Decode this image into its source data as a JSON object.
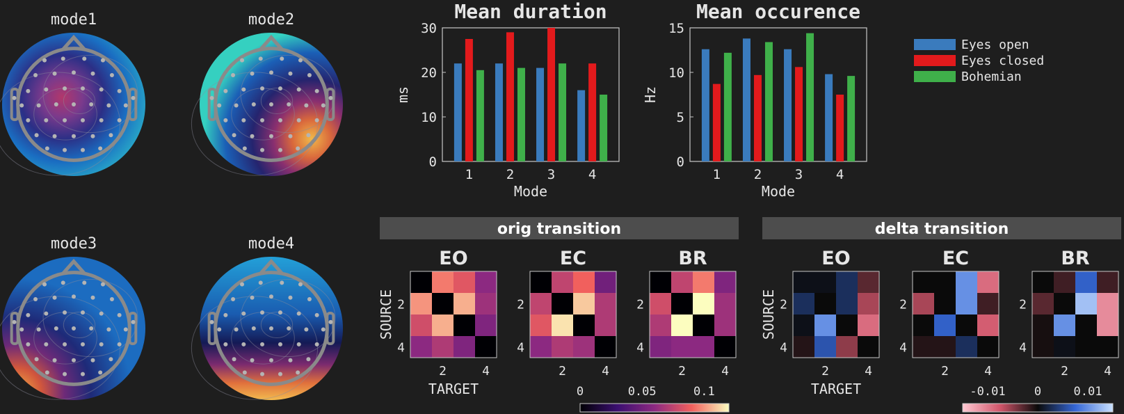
{
  "colors": {
    "background": "#1e1e1e",
    "eyes_open": "#3a7bbd",
    "eyes_closed": "#e31a1c",
    "bohemian": "#3fb04a",
    "banner": "#4d4d4d",
    "axis": "#c8c8c8",
    "text": "#e6e6e6"
  },
  "topomaps": [
    {
      "title": "mode1",
      "pattern": "central-hot"
    },
    {
      "title": "mode2",
      "pattern": "right-posterior-hot"
    },
    {
      "title": "mode3",
      "pattern": "left-temporal-hot"
    },
    {
      "title": "mode4",
      "pattern": "occipital-hot"
    }
  ],
  "chart_data": [
    {
      "type": "bar",
      "title": "Mean duration",
      "xlabel": "Mode",
      "ylabel": "ms",
      "categories": [
        "1",
        "2",
        "3",
        "4"
      ],
      "ylim": [
        0,
        30
      ],
      "yticks": [
        "0",
        "10",
        "20",
        "30"
      ],
      "series": [
        {
          "name": "Eyes open",
          "values": [
            22,
            22,
            21,
            16
          ]
        },
        {
          "name": "Eyes closed",
          "values": [
            27.5,
            29,
            30.5,
            22
          ]
        },
        {
          "name": "Bohemian",
          "values": [
            20.5,
            21,
            22,
            15
          ]
        }
      ]
    },
    {
      "type": "bar",
      "title": "Mean occurence",
      "xlabel": "Mode",
      "ylabel": "Hz",
      "categories": [
        "1",
        "2",
        "3",
        "4"
      ],
      "ylim": [
        0,
        15
      ],
      "yticks": [
        "0",
        "5",
        "10",
        "15"
      ],
      "series": [
        {
          "name": "Eyes open",
          "values": [
            12.6,
            13.8,
            12.6,
            9.8
          ]
        },
        {
          "name": "Eyes closed",
          "values": [
            8.7,
            9.7,
            10.6,
            7.5
          ]
        },
        {
          "name": "Bohemian",
          "values": [
            12.2,
            13.4,
            14.4,
            9.6
          ]
        }
      ]
    },
    {
      "type": "heatmap",
      "banner": "orig transition",
      "colormap": "magma",
      "clim": [
        0,
        0.12
      ],
      "colorbar_ticks": [
        "0",
        "0.05",
        "0.1"
      ],
      "colorbar_tick_values": [
        0,
        0.05,
        0.1
      ],
      "ylabel": "SOURCE",
      "xlabel": "TARGET",
      "row_ticks": [
        "2",
        "4"
      ],
      "col_ticks": [
        "2",
        "4"
      ],
      "panels": [
        {
          "title": "EO",
          "matrix": [
            [
              0,
              0.095,
              0.085,
              0.06
            ],
            [
              0.1,
              0,
              0.105,
              0.065
            ],
            [
              0.08,
              0.105,
              0,
              0.055
            ],
            [
              0.06,
              0.07,
              0.055,
              0
            ]
          ]
        },
        {
          "title": "EC",
          "matrix": [
            [
              0,
              0.075,
              0.09,
              0.05
            ],
            [
              0.075,
              0,
              0.11,
              0.07
            ],
            [
              0.085,
              0.115,
              0,
              0.07
            ],
            [
              0.06,
              0.07,
              0.065,
              0
            ]
          ]
        },
        {
          "title": "BR",
          "matrix": [
            [
              0,
              0.075,
              0.095,
              0.055
            ],
            [
              0.08,
              0,
              0.12,
              0.065
            ],
            [
              0.07,
              0.12,
              0,
              0.065
            ],
            [
              0.055,
              0.06,
              0.06,
              0
            ]
          ]
        }
      ]
    },
    {
      "type": "heatmap",
      "banner": "delta transition",
      "colormap": "diverging",
      "clim": [
        -0.015,
        0.015
      ],
      "colorbar_ticks": [
        "-0.01",
        "0",
        "0.01"
      ],
      "colorbar_tick_values": [
        -0.01,
        0,
        0.01
      ],
      "ylabel": "SOURCE",
      "xlabel": "TARGET",
      "row_ticks": [
        "2",
        "4"
      ],
      "col_ticks": [
        "2",
        "4"
      ],
      "panels": [
        {
          "title": "EO",
          "matrix": [
            [
              0.0005,
              0.0005,
              0.003,
              -0.003
            ],
            [
              0.003,
              0,
              0.003,
              -0.006
            ],
            [
              0.0005,
              0.01,
              0,
              -0.009
            ],
            [
              -0.001,
              0.006,
              -0.005,
              0
            ]
          ]
        },
        {
          "title": "EC",
          "matrix": [
            [
              0,
              0,
              0.01,
              -0.009
            ],
            [
              -0.006,
              0,
              0.01,
              -0.002
            ],
            [
              0,
              0.007,
              0,
              -0.008
            ],
            [
              -0.001,
              -0.001,
              0.003,
              0
            ]
          ]
        },
        {
          "title": "BR",
          "matrix": [
            [
              0,
              -0.002,
              0.007,
              -0.002
            ],
            [
              -0.003,
              0,
              0.013,
              -0.011
            ],
            [
              -0.0005,
              0.01,
              0,
              -0.011
            ],
            [
              -0.0005,
              0.0005,
              0,
              0
            ]
          ]
        }
      ]
    }
  ]
}
